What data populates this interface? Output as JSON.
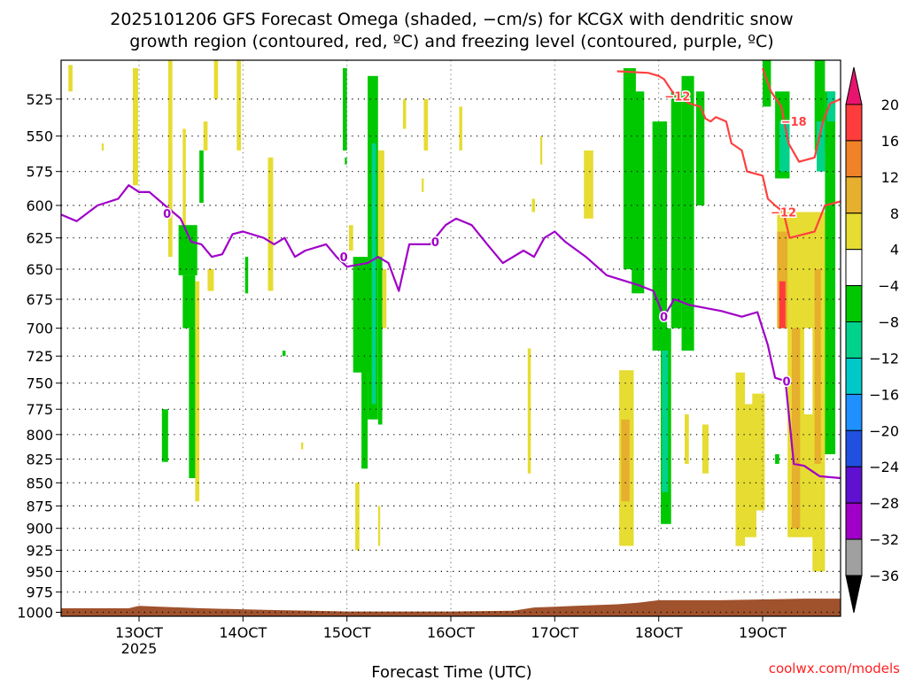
{
  "chart_data": {
    "type": "heatmap",
    "title_lines": [
      "2025101206 GFS Forecast Omega (shaded, −cm/s) for KCGX with dendritic snow",
      "growth region (contoured, red, ºC) and freezing level (contoured, purple, ºC)"
    ],
    "xlabel": "Forecast Time (UTC)",
    "x_ticks": [
      {
        "label": "13OCT",
        "sub": "2025",
        "t": 13
      },
      {
        "label": "14OCT",
        "sub": "",
        "t": 14
      },
      {
        "label": "15OCT",
        "sub": "",
        "t": 15
      },
      {
        "label": "16OCT",
        "sub": "",
        "t": 16
      },
      {
        "label": "17OCT",
        "sub": "",
        "t": 17
      },
      {
        "label": "18OCT",
        "sub": "",
        "t": 18
      },
      {
        "label": "19OCT",
        "sub": "",
        "t": 19
      }
    ],
    "xlim": [
      12.25,
      19.75
    ],
    "y_ticks": [
      525,
      550,
      575,
      600,
      625,
      650,
      675,
      700,
      725,
      750,
      775,
      800,
      825,
      850,
      875,
      900,
      925,
      950,
      975,
      1000
    ],
    "ylim": [
      500,
      1005
    ],
    "grid": true,
    "credit": "coolwx.com/models",
    "colorbar": {
      "levels": [
        "20",
        "16",
        "12",
        "8",
        "4",
        "−4",
        "−8",
        "−12",
        "−16",
        "−20",
        "−24",
        "−28",
        "−32",
        "−36"
      ],
      "colors": [
        "#e8146e",
        "#ff3c3c",
        "#f08228",
        "#e6af2d",
        "#e6dc32",
        "#ffffff",
        "#00c800",
        "#00d28c",
        "#00c8c8",
        "#1e90ff",
        "#2050e0",
        "#6010d0",
        "#a000c8",
        "#a0a0a0",
        "#000000"
      ]
    },
    "shading": [
      {
        "t0": 12.32,
        "t1": 12.36,
        "p0": 503,
        "p1": 520,
        "v": 4
      },
      {
        "t0": 12.64,
        "t1": 12.66,
        "p0": 555,
        "p1": 560,
        "v": 4
      },
      {
        "t0": 12.94,
        "t1": 12.99,
        "p0": 505,
        "p1": 585,
        "v": 4
      },
      {
        "t0": 13.22,
        "t1": 13.28,
        "p0": 775,
        "p1": 828,
        "v": -8
      },
      {
        "t0": 13.28,
        "t1": 13.32,
        "p0": 500,
        "p1": 640,
        "v": 4
      },
      {
        "t0": 13.42,
        "t1": 13.45,
        "p0": 545,
        "p1": 618,
        "v": 4
      },
      {
        "t0": 13.58,
        "t1": 13.62,
        "p0": 560,
        "p1": 598,
        "v": -8
      },
      {
        "t0": 13.62,
        "t1": 13.66,
        "p0": 540,
        "p1": 560,
        "v": 4
      },
      {
        "t0": 13.72,
        "t1": 13.76,
        "p0": 500,
        "p1": 525,
        "v": 4
      },
      {
        "t0": 13.38,
        "t1": 13.56,
        "p0": 615,
        "p1": 655,
        "v": -8
      },
      {
        "t0": 13.42,
        "t1": 13.54,
        "p0": 655,
        "p1": 700,
        "v": -8
      },
      {
        "t0": 13.48,
        "t1": 13.56,
        "p0": 700,
        "p1": 845,
        "v": -8
      },
      {
        "t0": 13.54,
        "t1": 13.58,
        "p0": 660,
        "p1": 870,
        "v": 4
      },
      {
        "t0": 13.66,
        "t1": 13.72,
        "p0": 650,
        "p1": 668,
        "v": 4
      },
      {
        "t0": 13.94,
        "t1": 13.98,
        "p0": 500,
        "p1": 560,
        "v": 4
      },
      {
        "t0": 14.02,
        "t1": 14.05,
        "p0": 640,
        "p1": 670,
        "v": -8
      },
      {
        "t0": 14.24,
        "t1": 14.29,
        "p0": 565,
        "p1": 668,
        "v": 4
      },
      {
        "t0": 14.38,
        "t1": 14.41,
        "p0": 720,
        "p1": 725,
        "v": -8
      },
      {
        "t0": 14.56,
        "t1": 14.58,
        "p0": 808,
        "p1": 815,
        "v": 4
      },
      {
        "t0": 14.96,
        "t1": 15.0,
        "p0": 505,
        "p1": 560,
        "v": -8
      },
      {
        "t0": 14.98,
        "t1": 15.0,
        "p0": 565,
        "p1": 570,
        "v": -8
      },
      {
        "t0": 15.02,
        "t1": 15.06,
        "p0": 615,
        "p1": 635,
        "v": 4
      },
      {
        "t0": 15.06,
        "t1": 15.22,
        "p0": 640,
        "p1": 740,
        "v": -8
      },
      {
        "t0": 15.14,
        "t1": 15.2,
        "p0": 690,
        "p1": 835,
        "v": -8
      },
      {
        "t0": 15.2,
        "t1": 15.3,
        "p0": 510,
        "p1": 785,
        "v": -8
      },
      {
        "t0": 15.24,
        "t1": 15.28,
        "p0": 555,
        "p1": 630,
        "v": -12
      },
      {
        "t0": 15.24,
        "t1": 15.28,
        "p0": 630,
        "p1": 770,
        "v": -12
      },
      {
        "t0": 15.3,
        "t1": 15.34,
        "p0": 620,
        "p1": 790,
        "v": -8
      },
      {
        "t0": 15.3,
        "t1": 15.36,
        "p0": 560,
        "p1": 640,
        "v": 4
      },
      {
        "t0": 15.34,
        "t1": 15.38,
        "p0": 650,
        "p1": 700,
        "v": 4
      },
      {
        "t0": 15.08,
        "t1": 15.12,
        "p0": 850,
        "p1": 925,
        "v": 4
      },
      {
        "t0": 15.3,
        "t1": 15.32,
        "p0": 875,
        "p1": 920,
        "v": 4
      },
      {
        "t0": 15.54,
        "t1": 15.57,
        "p0": 525,
        "p1": 545,
        "v": 4
      },
      {
        "t0": 15.74,
        "t1": 15.78,
        "p0": 525,
        "p1": 560,
        "v": 4
      },
      {
        "t0": 15.72,
        "t1": 15.74,
        "p0": 580,
        "p1": 590,
        "v": 4
      },
      {
        "t0": 16.08,
        "t1": 16.11,
        "p0": 530,
        "p1": 560,
        "v": 4
      },
      {
        "t0": 16.78,
        "t1": 16.81,
        "p0": 595,
        "p1": 605,
        "v": 4
      },
      {
        "t0": 16.86,
        "t1": 16.88,
        "p0": 550,
        "p1": 570,
        "v": 4
      },
      {
        "t0": 16.74,
        "t1": 16.77,
        "p0": 718,
        "p1": 840,
        "v": 4
      },
      {
        "t0": 17.28,
        "t1": 17.37,
        "p0": 560,
        "p1": 610,
        "v": 4
      },
      {
        "t0": 17.66,
        "t1": 17.78,
        "p0": 505,
        "p1": 650,
        "v": -8
      },
      {
        "t0": 17.74,
        "t1": 17.86,
        "p0": 520,
        "p1": 670,
        "v": -8
      },
      {
        "t0": 17.62,
        "t1": 17.76,
        "p0": 738,
        "p1": 920,
        "v": 4
      },
      {
        "t0": 17.64,
        "t1": 17.72,
        "p0": 785,
        "p1": 870,
        "v": 8
      },
      {
        "t0": 17.94,
        "t1": 18.08,
        "p0": 540,
        "p1": 720,
        "v": -8
      },
      {
        "t0": 18.02,
        "t1": 18.12,
        "p0": 700,
        "p1": 895,
        "v": -8
      },
      {
        "t0": 18.03,
        "t1": 18.09,
        "p0": 720,
        "p1": 860,
        "v": -12
      },
      {
        "t0": 18.12,
        "t1": 18.22,
        "p0": 520,
        "p1": 700,
        "v": -8
      },
      {
        "t0": 18.22,
        "t1": 18.34,
        "p0": 510,
        "p1": 720,
        "v": -8
      },
      {
        "t0": 18.26,
        "t1": 18.32,
        "p0": 700,
        "p1": 720,
        "v": -8
      },
      {
        "t0": 18.36,
        "t1": 18.44,
        "p0": 520,
        "p1": 600,
        "v": -8
      },
      {
        "t0": 18.25,
        "t1": 18.29,
        "p0": 780,
        "p1": 830,
        "v": 4
      },
      {
        "t0": 18.42,
        "t1": 18.48,
        "p0": 790,
        "p1": 840,
        "v": 4
      },
      {
        "t0": 18.74,
        "t1": 18.83,
        "p0": 740,
        "p1": 920,
        "v": 4
      },
      {
        "t0": 18.82,
        "t1": 18.94,
        "p0": 770,
        "p1": 910,
        "v": 4
      },
      {
        "t0": 18.9,
        "t1": 19.02,
        "p0": 760,
        "p1": 880,
        "v": 4
      },
      {
        "t0": 19.0,
        "t1": 19.08,
        "p0": 500,
        "p1": 530,
        "v": -8
      },
      {
        "t0": 19.12,
        "t1": 19.16,
        "p0": 820,
        "p1": 830,
        "v": -8
      },
      {
        "t0": 19.12,
        "t1": 19.26,
        "p0": 520,
        "p1": 580,
        "v": -8
      },
      {
        "t0": 19.16,
        "t1": 19.26,
        "p0": 540,
        "p1": 575,
        "v": -12
      },
      {
        "t0": 19.14,
        "t1": 19.6,
        "p0": 605,
        "p1": 700,
        "v": 4
      },
      {
        "t0": 19.14,
        "t1": 19.24,
        "p0": 620,
        "p1": 700,
        "v": 8
      },
      {
        "t0": 19.16,
        "t1": 19.22,
        "p0": 660,
        "p1": 700,
        "v": 16
      },
      {
        "t0": 19.24,
        "t1": 19.4,
        "p0": 680,
        "p1": 910,
        "v": 4
      },
      {
        "t0": 19.28,
        "t1": 19.36,
        "p0": 700,
        "p1": 900,
        "v": 8
      },
      {
        "t0": 19.4,
        "t1": 19.5,
        "p0": 780,
        "p1": 910,
        "v": 4
      },
      {
        "t0": 19.48,
        "t1": 19.6,
        "p0": 620,
        "p1": 950,
        "v": 4
      },
      {
        "t0": 19.5,
        "t1": 19.56,
        "p0": 650,
        "p1": 830,
        "v": 8
      },
      {
        "t0": 19.5,
        "t1": 19.6,
        "p0": 500,
        "p1": 560,
        "v": -8
      },
      {
        "t0": 19.52,
        "t1": 19.6,
        "p0": 540,
        "p1": 575,
        "v": -12
      },
      {
        "t0": 19.6,
        "t1": 19.7,
        "p0": 520,
        "p1": 820,
        "v": -8
      },
      {
        "t0": 19.62,
        "t1": 19.7,
        "p0": 520,
        "p1": 540,
        "v": -12
      }
    ],
    "terrain": {
      "color": "#a0522d",
      "series": [
        {
          "t": 12.25,
          "p": 995
        },
        {
          "t": 12.9,
          "p": 995
        },
        {
          "t": 13.0,
          "p": 992
        },
        {
          "t": 13.2,
          "p": 993
        },
        {
          "t": 13.6,
          "p": 995
        },
        {
          "t": 14.2,
          "p": 997
        },
        {
          "t": 15.0,
          "p": 999
        },
        {
          "t": 16.0,
          "p": 999
        },
        {
          "t": 16.6,
          "p": 998
        },
        {
          "t": 16.8,
          "p": 994
        },
        {
          "t": 17.2,
          "p": 992
        },
        {
          "t": 17.6,
          "p": 990
        },
        {
          "t": 17.8,
          "p": 988
        },
        {
          "t": 18.0,
          "p": 985
        },
        {
          "t": 18.6,
          "p": 985
        },
        {
          "t": 19.0,
          "p": 984
        },
        {
          "t": 19.4,
          "p": 983
        },
        {
          "t": 19.75,
          "p": 983
        }
      ]
    },
    "contours": [
      {
        "level": "0",
        "color": "#a000c8",
        "points": [
          {
            "t": 12.25,
            "p": 607
          },
          {
            "t": 12.4,
            "p": 612
          },
          {
            "t": 12.6,
            "p": 600
          },
          {
            "t": 12.8,
            "p": 595
          },
          {
            "t": 12.9,
            "p": 585
          },
          {
            "t": 13.0,
            "p": 590
          },
          {
            "t": 13.1,
            "p": 590
          },
          {
            "t": 13.25,
            "p": 600
          },
          {
            "t": 13.4,
            "p": 610
          },
          {
            "t": 13.5,
            "p": 628
          },
          {
            "t": 13.6,
            "p": 630
          },
          {
            "t": 13.7,
            "p": 640
          },
          {
            "t": 13.8,
            "p": 638
          },
          {
            "t": 13.9,
            "p": 622
          },
          {
            "t": 14.0,
            "p": 620
          },
          {
            "t": 14.2,
            "p": 625
          },
          {
            "t": 14.3,
            "p": 630
          },
          {
            "t": 14.4,
            "p": 625
          },
          {
            "t": 14.5,
            "p": 640
          },
          {
            "t": 14.6,
            "p": 635
          },
          {
            "t": 14.8,
            "p": 630
          },
          {
            "t": 14.9,
            "p": 640
          },
          {
            "t": 15.0,
            "p": 648
          },
          {
            "t": 15.2,
            "p": 645
          },
          {
            "t": 15.3,
            "p": 640
          },
          {
            "t": 15.4,
            "p": 645
          },
          {
            "t": 15.5,
            "p": 668
          },
          {
            "t": 15.6,
            "p": 630
          },
          {
            "t": 15.8,
            "p": 630
          },
          {
            "t": 15.95,
            "p": 615
          },
          {
            "t": 16.05,
            "p": 610
          },
          {
            "t": 16.2,
            "p": 615
          },
          {
            "t": 16.35,
            "p": 630
          },
          {
            "t": 16.5,
            "p": 645
          },
          {
            "t": 16.7,
            "p": 635
          },
          {
            "t": 16.8,
            "p": 640
          },
          {
            "t": 16.9,
            "p": 625
          },
          {
            "t": 17.0,
            "p": 620
          },
          {
            "t": 17.1,
            "p": 628
          },
          {
            "t": 17.3,
            "p": 640
          },
          {
            "t": 17.5,
            "p": 655
          },
          {
            "t": 17.8,
            "p": 663
          },
          {
            "t": 17.95,
            "p": 668
          },
          {
            "t": 18.05,
            "p": 690
          },
          {
            "t": 18.15,
            "p": 675
          },
          {
            "t": 18.3,
            "p": 680
          },
          {
            "t": 18.6,
            "p": 685
          },
          {
            "t": 18.8,
            "p": 690
          },
          {
            "t": 18.95,
            "p": 686
          },
          {
            "t": 19.05,
            "p": 715
          },
          {
            "t": 19.12,
            "p": 745
          },
          {
            "t": 19.22,
            "p": 748
          },
          {
            "t": 19.3,
            "p": 830
          },
          {
            "t": 19.4,
            "p": 832
          },
          {
            "t": 19.55,
            "p": 843
          },
          {
            "t": 19.75,
            "p": 845
          }
        ],
        "labels": [
          {
            "t": 13.27,
            "p": 606
          },
          {
            "t": 14.97,
            "p": 640
          },
          {
            "t": 15.85,
            "p": 628
          },
          {
            "t": 18.05,
            "p": 690
          },
          {
            "t": 19.23,
            "p": 748
          }
        ]
      },
      {
        "level": "−12",
        "color": "#ff4040",
        "points": [
          {
            "t": 17.6,
            "p": 507
          },
          {
            "t": 17.9,
            "p": 508
          },
          {
            "t": 18.0,
            "p": 510
          },
          {
            "t": 18.05,
            "p": 512
          },
          {
            "t": 18.15,
            "p": 522
          },
          {
            "t": 18.3,
            "p": 528
          },
          {
            "t": 18.4,
            "p": 530
          },
          {
            "t": 18.45,
            "p": 538
          },
          {
            "t": 18.5,
            "p": 540
          },
          {
            "t": 18.55,
            "p": 537
          },
          {
            "t": 18.65,
            "p": 540
          },
          {
            "t": 18.7,
            "p": 555
          },
          {
            "t": 18.8,
            "p": 560
          },
          {
            "t": 18.85,
            "p": 575
          },
          {
            "t": 19.0,
            "p": 578
          },
          {
            "t": 19.05,
            "p": 595
          },
          {
            "t": 19.12,
            "p": 600
          },
          {
            "t": 19.2,
            "p": 605
          },
          {
            "t": 19.26,
            "p": 625
          },
          {
            "t": 19.5,
            "p": 620
          },
          {
            "t": 19.6,
            "p": 600
          },
          {
            "t": 19.75,
            "p": 597
          }
        ],
        "labels": [
          {
            "t": 18.18,
            "p": 523
          },
          {
            "t": 19.2,
            "p": 605
          }
        ]
      },
      {
        "level": "−18",
        "color": "#ff4040",
        "points": [
          {
            "t": 19.0,
            "p": 505
          },
          {
            "t": 19.08,
            "p": 520
          },
          {
            "t": 19.18,
            "p": 530
          },
          {
            "t": 19.25,
            "p": 555
          },
          {
            "t": 19.35,
            "p": 568
          },
          {
            "t": 19.5,
            "p": 565
          },
          {
            "t": 19.58,
            "p": 540
          },
          {
            "t": 19.65,
            "p": 528
          },
          {
            "t": 19.75,
            "p": 525
          }
        ],
        "labels": [
          {
            "t": 19.3,
            "p": 540
          }
        ]
      }
    ]
  }
}
